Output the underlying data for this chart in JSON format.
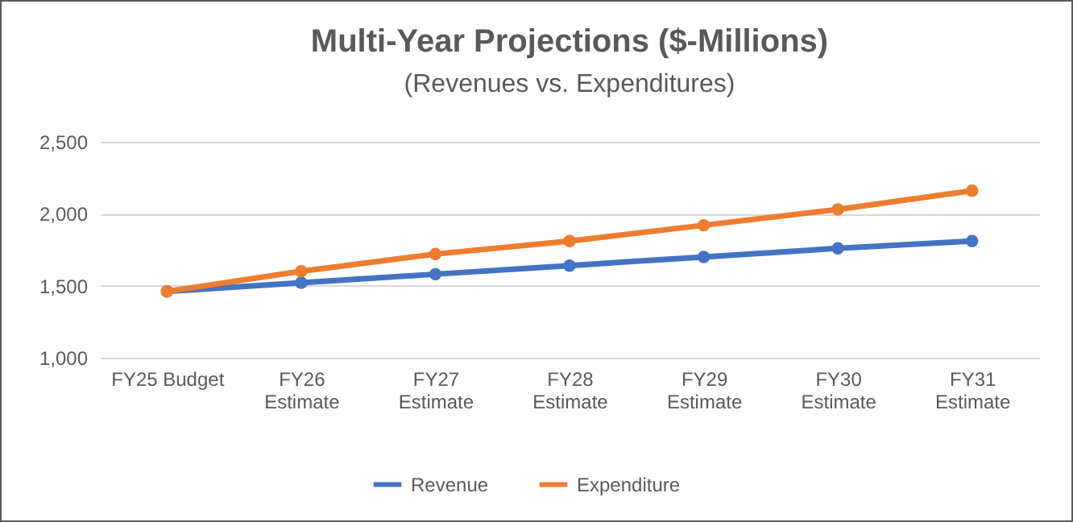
{
  "chart_data": {
    "type": "line",
    "title": "Multi-Year Projections ($-Millions)",
    "subtitle": "(Revenues vs. Expenditures)",
    "categories": [
      "FY25 Budget",
      "FY26 Estimate",
      "FY27 Estimate",
      "FY28 Estimate",
      "FY29 Estimate",
      "FY30 Estimate",
      "FY31 Estimate"
    ],
    "series": [
      {
        "name": "Revenue",
        "color": "#4472c4",
        "values": [
          1460,
          1520,
          1580,
          1640,
          1700,
          1760,
          1810
        ]
      },
      {
        "name": "Expenditure",
        "color": "#ed7d31",
        "values": [
          1460,
          1600,
          1720,
          1810,
          1920,
          2030,
          2160
        ]
      }
    ],
    "ylim": [
      1000,
      2500
    ],
    "yticks": [
      {
        "value": 1000,
        "label": "1,000"
      },
      {
        "value": 1500,
        "label": "1,500"
      },
      {
        "value": 2000,
        "label": "2,000"
      },
      {
        "value": 2500,
        "label": "2,500"
      }
    ],
    "grid": "y",
    "legend": "bottom",
    "marker": "circle",
    "line_style": "solid"
  }
}
